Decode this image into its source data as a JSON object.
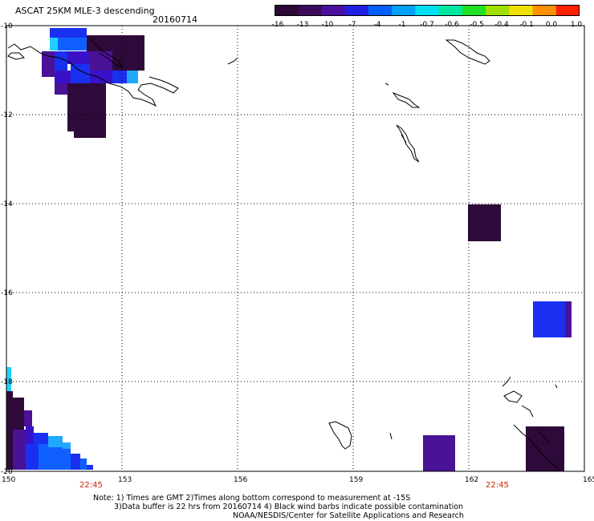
{
  "header": {
    "title": "ASCAT 25KM MLE-3 descending",
    "date": "20160714"
  },
  "colorbar": {
    "labels": [
      "-16",
      "-13",
      "-10",
      "-7",
      "-4",
      "-1",
      "-0.7",
      "-0.6",
      "-0.5",
      "-0.4",
      "-0.1",
      "0.0",
      "1.0"
    ],
    "colors": [
      "#2a0a35",
      "#3a0a5a",
      "#4a10a0",
      "#2020e0",
      "#0060ff",
      "#00a0ff",
      "#00e0f0",
      "#00e8a0",
      "#20e020",
      "#a0e000",
      "#f0e000",
      "#ff9000",
      "#ff2000"
    ]
  },
  "map": {
    "lon_labels": [
      "150",
      "153",
      "156",
      "159",
      "162",
      "165"
    ],
    "lat_labels": [
      "-10",
      "-12",
      "-14",
      "-16",
      "-18",
      "-20"
    ],
    "pass_times": [
      "22:45",
      "22:45"
    ],
    "cell_colors": {
      "dark": "#2e0a3a",
      "purple": "#4a1296",
      "violet": "#3a10c8",
      "blue": "#1a30f0",
      "mid_blue": "#1060ff",
      "light_blue": "#20a8ff",
      "cyan": "#20d0ff"
    }
  },
  "notes": {
    "line1": "Note: 1) Times are GMT 2)Times along bottom correspond to measurement at -15S",
    "line2": "3)Data buffer is 22 hrs from 20160714 4) Black wind barbs indicate possible contamination",
    "line3": "NOAA/NESDIS/Center for Satellite Applications and Research"
  }
}
